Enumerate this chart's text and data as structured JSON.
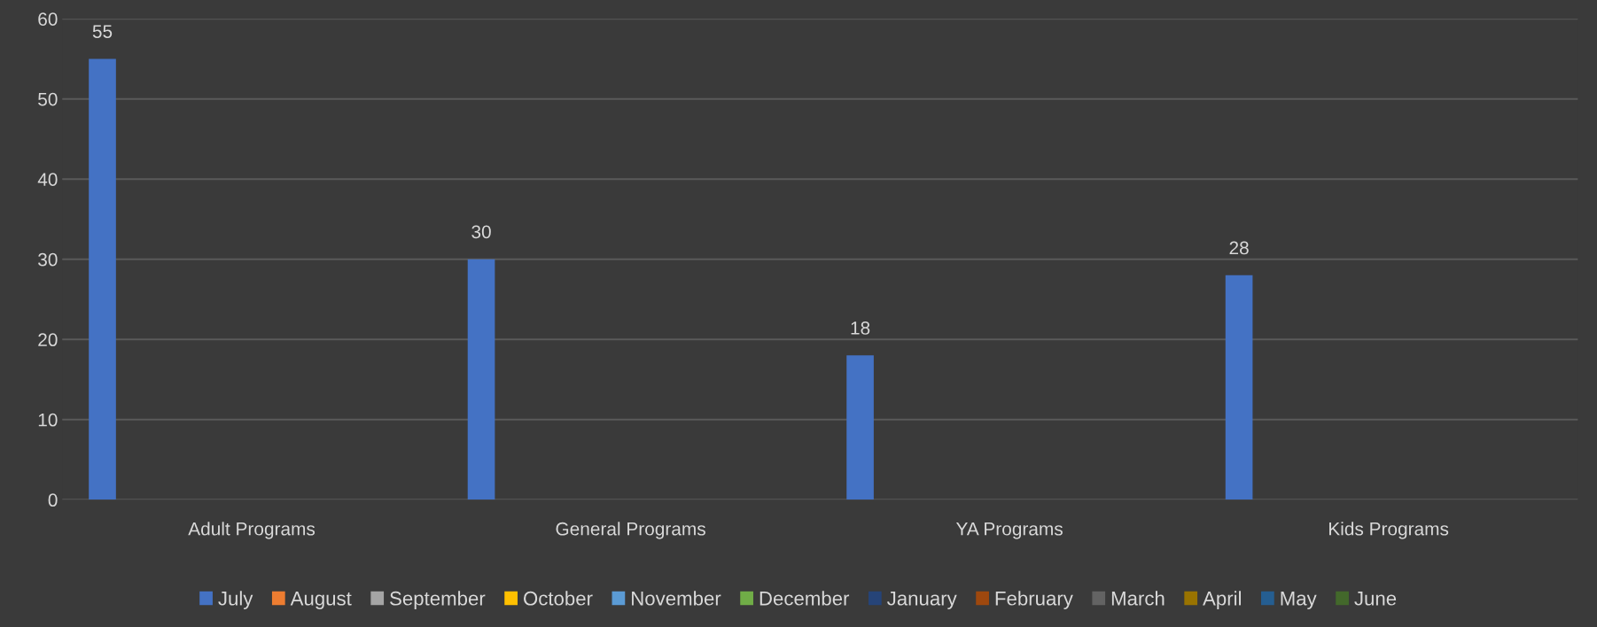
{
  "chart_data": {
    "type": "bar",
    "categories": [
      "Adult Programs",
      "General Programs",
      "YA Programs",
      "Kids Programs"
    ],
    "series": [
      {
        "name": "July",
        "color": "#4472c4",
        "values": [
          55,
          30,
          18,
          28
        ]
      },
      {
        "name": "August",
        "color": "#ed7d31",
        "values": [
          null,
          null,
          null,
          null
        ]
      },
      {
        "name": "September",
        "color": "#a5a5a5",
        "values": [
          null,
          null,
          null,
          null
        ]
      },
      {
        "name": "October",
        "color": "#ffc000",
        "values": [
          null,
          null,
          null,
          null
        ]
      },
      {
        "name": "November",
        "color": "#5b9bd5",
        "values": [
          null,
          null,
          null,
          null
        ]
      },
      {
        "name": "December",
        "color": "#70ad47",
        "values": [
          null,
          null,
          null,
          null
        ]
      },
      {
        "name": "January",
        "color": "#264478",
        "values": [
          null,
          null,
          null,
          null
        ]
      },
      {
        "name": "February",
        "color": "#9e480e",
        "values": [
          null,
          null,
          null,
          null
        ]
      },
      {
        "name": "March",
        "color": "#636363",
        "values": [
          null,
          null,
          null,
          null
        ]
      },
      {
        "name": "April",
        "color": "#997300",
        "values": [
          null,
          null,
          null,
          null
        ]
      },
      {
        "name": "May",
        "color": "#255e91",
        "values": [
          null,
          null,
          null,
          null
        ]
      },
      {
        "name": "June",
        "color": "#43682b",
        "values": [
          null,
          null,
          null,
          null
        ]
      }
    ],
    "ylim": [
      0,
      60
    ],
    "yticks": [
      0,
      10,
      20,
      30,
      40,
      50,
      60
    ],
    "grid": "y",
    "legend": "bottom",
    "data_labels": true
  }
}
